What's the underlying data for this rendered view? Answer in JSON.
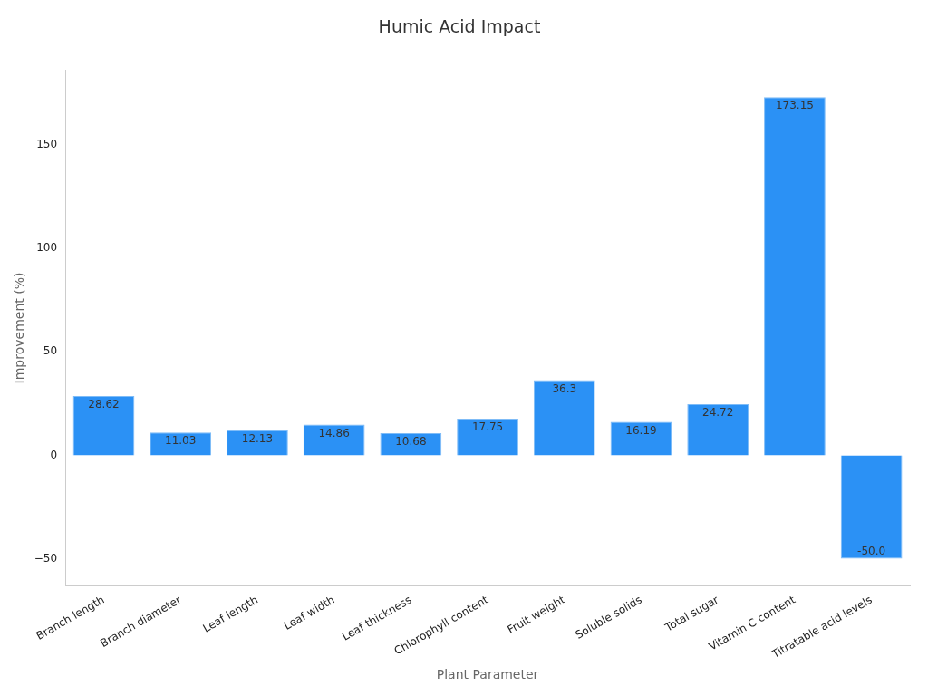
{
  "chart_data": {
    "type": "bar",
    "title": "Humic Acid Impact",
    "xlabel": "Plant Parameter",
    "ylabel": "Improvement (%)",
    "categories": [
      "Branch length",
      "Branch diameter",
      "Leaf length",
      "Leaf width",
      "Leaf thickness",
      "Chlorophyll content",
      "Fruit weight",
      "Soluble solids",
      "Total sugar",
      "Vitamin C content",
      "Titratable acid levels"
    ],
    "values": [
      28.62,
      11.03,
      12.13,
      14.86,
      10.68,
      17.75,
      36.3,
      16.19,
      24.72,
      173.15,
      -50.0
    ],
    "value_labels": [
      "28.62",
      "11.03",
      "12.13",
      "14.86",
      "10.68",
      "17.75",
      "36.3",
      "16.19",
      "24.72",
      "173.15",
      "-50.0"
    ],
    "color": "#2b91f5",
    "ylim": [
      -63,
      186
    ],
    "yticks": [
      -50,
      0,
      50,
      100,
      150
    ],
    "grid": false,
    "legend": false
  }
}
